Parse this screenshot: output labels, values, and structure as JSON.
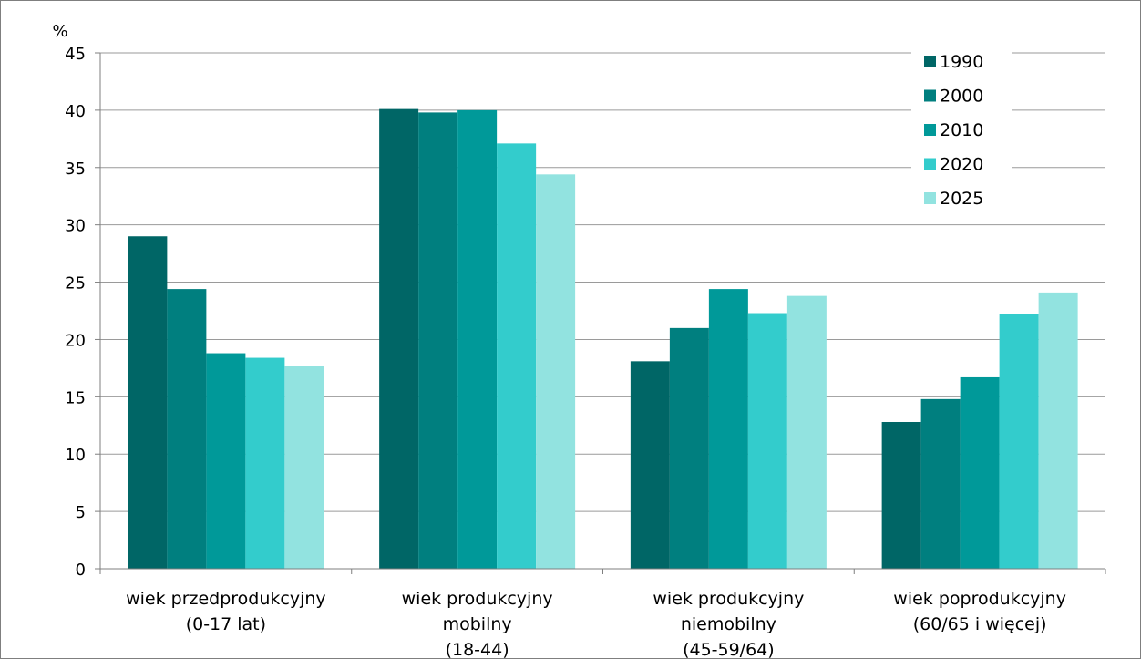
{
  "chart_data": {
    "type": "bar",
    "ylabel": "%",
    "ylim": [
      0,
      45
    ],
    "yticks": [
      0,
      5,
      10,
      15,
      20,
      25,
      30,
      35,
      40,
      45
    ],
    "grid": true,
    "legend_position": "top-right",
    "categories": [
      [
        "wiek przedprodukcyjny",
        "(0-17 lat)"
      ],
      [
        "wiek produkcyjny",
        "mobilny",
        "(18-44)"
      ],
      [
        "wiek produkcyjny",
        "niemobilny",
        "(45-59/64)"
      ],
      [
        "wiek poprodukcyjny",
        "(60/65 i więcej)"
      ]
    ],
    "series": [
      {
        "name": "1990",
        "color": "#006666",
        "values": [
          29.0,
          40.1,
          18.1,
          12.8
        ]
      },
      {
        "name": "2000",
        "color": "#007F7F",
        "values": [
          24.4,
          39.8,
          21.0,
          14.8
        ]
      },
      {
        "name": "2010",
        "color": "#009999",
        "values": [
          18.8,
          40.0,
          24.4,
          16.7
        ]
      },
      {
        "name": "2020",
        "color": "#33CCCC",
        "values": [
          18.4,
          37.1,
          22.3,
          22.2
        ]
      },
      {
        "name": "2025",
        "color": "#92E3E0",
        "values": [
          17.7,
          34.4,
          23.8,
          24.1
        ]
      }
    ]
  }
}
